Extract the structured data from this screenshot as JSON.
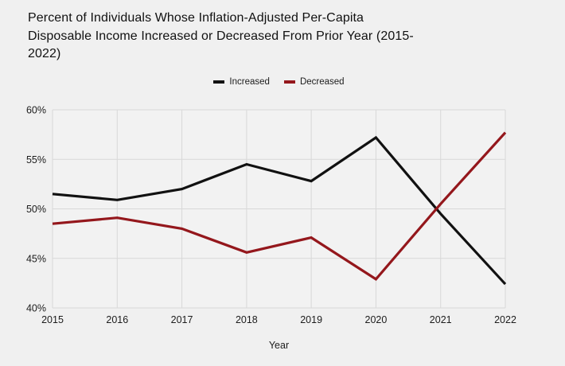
{
  "title": {
    "full": "Percent of Individuals Whose Inflation-Adjusted Per-Capita Disposable Income Increased or Decreased From Prior Year (2015-2022)",
    "lines": [
      "Percent of Individuals Whose Inflation-Adjusted Per-Capita",
      "Disposable Income Increased or Decreased From Prior Year (2015-",
      "2022)"
    ]
  },
  "colors": {
    "background": "#f0f0f0",
    "plot_background": "#f2f2f2",
    "gridline": "#d8d8d8",
    "text": "#1c1c1c",
    "increased": "#111111",
    "decreased": "#94171c"
  },
  "chart_data": {
    "type": "line",
    "title": "Percent of Individuals Whose Inflation-Adjusted Per-Capita Disposable Income Increased or Decreased From Prior Year (2015-2022)",
    "x": [
      2015,
      2016,
      2017,
      2018,
      2019,
      2020,
      2021,
      2022
    ],
    "series": [
      {
        "name": "Increased",
        "color": "#111111",
        "values": [
          51.5,
          50.9,
          52.0,
          54.5,
          52.8,
          57.2,
          49.5,
          42.4
        ]
      },
      {
        "name": "Decreased",
        "color": "#94171c",
        "values": [
          48.5,
          49.1,
          48.0,
          45.6,
          47.1,
          42.9,
          50.5,
          57.7
        ]
      }
    ],
    "xlabel": "Year",
    "ylabel": "",
    "ylim": [
      40,
      60
    ],
    "y_ticks": [
      40,
      45,
      50,
      55,
      60
    ],
    "y_tick_labels": [
      "40%",
      "45%",
      "50%",
      "55%",
      "60%"
    ],
    "grid": true,
    "legend_position": "top-center"
  }
}
